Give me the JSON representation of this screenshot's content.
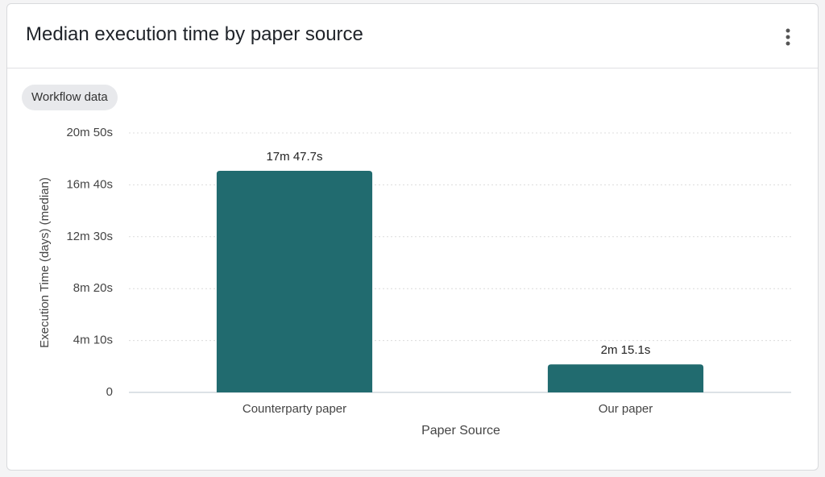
{
  "header": {
    "title": "Median execution time by paper source"
  },
  "chip": "Workflow data",
  "chart_data": {
    "type": "bar",
    "categories": [
      "Counterparty paper",
      "Our paper"
    ],
    "values": [
      1067.7,
      135.1
    ],
    "value_labels": [
      "17m 47.7s",
      "2m 15.1s"
    ],
    "color": "#216b6f",
    "x_label": "Paper Source",
    "y_label": "Execution Time (days) (median)",
    "ylim": [
      0,
      1250
    ],
    "yticks": [
      {
        "value": 0,
        "label": "0"
      },
      {
        "value": 250,
        "label": "4m 10s"
      },
      {
        "value": 500,
        "label": "8m 20s"
      },
      {
        "value": 750,
        "label": "12m 30s"
      },
      {
        "value": 1000,
        "label": "16m 40s"
      },
      {
        "value": 1250,
        "label": "20m 50s"
      }
    ],
    "grid": true
  }
}
